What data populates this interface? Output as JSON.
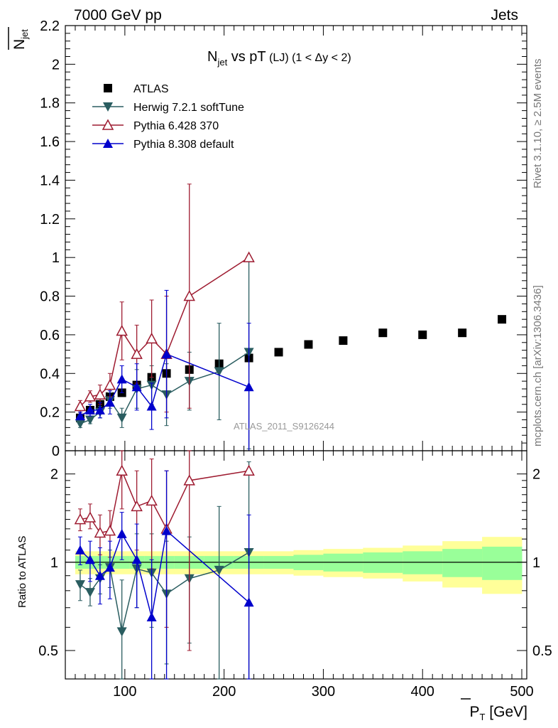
{
  "header": {
    "left": "7000 GeV pp",
    "right": "Jets"
  },
  "side_labels": {
    "rivet": "Rivet 3.1.10, ≥ 2.5M events",
    "mcplots": "mcplots.cern.ch [arXiv:1306.3436]"
  },
  "watermark": "ATLAS_2011_S9126244",
  "chart_data": [
    {
      "type": "scatter",
      "panel": "main",
      "title_parts": {
        "main": "N",
        "sub": "jet",
        "rest": " vs pT",
        "lj": " (LJ)",
        "range": " (1 < Δy < 2)"
      },
      "ylabel_parts": {
        "main": "N",
        "sub": "jet"
      },
      "ylim": [
        0,
        2.2
      ],
      "xlim": [
        40,
        505
      ],
      "y_ticks": [
        0,
        0.2,
        0.4,
        0.6,
        0.8,
        1,
        1.2,
        1.4,
        1.6,
        1.8,
        2,
        2.2
      ],
      "y_tick_labels": [
        "0",
        "0.2",
        "0.4",
        "0.6",
        "0.8",
        "1",
        "1.2",
        "1.4",
        "1.6",
        "1.8",
        "2",
        "2.2"
      ],
      "legend_position": "top-left",
      "series": [
        {
          "name": "ATLAS",
          "color": "#000000",
          "marker": "square",
          "x": [
            55,
            65,
            75,
            85,
            97,
            112,
            127,
            142,
            165,
            195,
            225,
            255,
            285,
            320,
            360,
            400,
            440,
            480
          ],
          "y": [
            0.17,
            0.21,
            0.24,
            0.28,
            0.3,
            0.34,
            0.38,
            0.4,
            0.42,
            0.45,
            0.48,
            0.51,
            0.55,
            0.57,
            0.61,
            0.6,
            0.61,
            0.68
          ],
          "err": [
            0.01,
            0.01,
            0.01,
            0.01,
            0.01,
            0.01,
            0.01,
            0.01,
            0.01,
            0.01,
            0.01,
            0.01,
            0.01,
            0.01,
            0.01,
            0.01,
            0.01,
            0.01
          ]
        },
        {
          "name": "Herwig 7.2.1 softTune",
          "color": "#2a5d60",
          "marker": "triangle-down",
          "x": [
            55,
            65,
            75,
            85,
            97,
            112,
            127,
            142,
            165,
            195,
            225
          ],
          "y": [
            0.14,
            0.16,
            0.2,
            0.26,
            0.17,
            0.32,
            0.34,
            0.29,
            0.36,
            0.41,
            0.51
          ],
          "err": [
            0.02,
            0.02,
            0.03,
            0.04,
            0.05,
            0.1,
            0.1,
            0.16,
            0.15,
            0.25,
            0.5
          ]
        },
        {
          "name": "Pythia 6.428 370",
          "color": "#9e1b30",
          "marker": "triangle-up-open",
          "x": [
            55,
            65,
            75,
            85,
            97,
            112,
            127,
            142,
            165,
            225
          ],
          "y": [
            0.23,
            0.28,
            0.29,
            0.34,
            0.62,
            0.5,
            0.58,
            0.5,
            0.8,
            1.0
          ],
          "err": [
            0.03,
            0.03,
            0.05,
            0.06,
            0.15,
            0.15,
            0.2,
            0.3,
            0.58,
            0.01
          ]
        },
        {
          "name": "Pythia 8.308 default",
          "color": "#0000cc",
          "marker": "triangle-up",
          "x": [
            55,
            65,
            75,
            85,
            97,
            112,
            127,
            142,
            225
          ],
          "y": [
            0.18,
            0.21,
            0.21,
            0.25,
            0.37,
            0.33,
            0.23,
            0.5,
            0.33
          ],
          "err": [
            0.02,
            0.03,
            0.04,
            0.06,
            0.07,
            0.12,
            0.12,
            0.33,
            0.33
          ]
        }
      ]
    },
    {
      "type": "scatter",
      "panel": "ratio",
      "ylabel": "Ratio to ATLAS",
      "xlabel_parts": {
        "main": "P",
        "sub": "T",
        "rest": " [GeV]"
      },
      "yscale": "log",
      "ylim": [
        0.4,
        2.4
      ],
      "xlim": [
        40,
        505
      ],
      "x_ticks": [
        100,
        200,
        300,
        400,
        500
      ],
      "x_tick_labels": [
        "100",
        "200",
        "300",
        "400",
        "500"
      ],
      "y_ticks": [
        0.5,
        1,
        2
      ],
      "y_tick_labels": [
        "0.5",
        "1",
        "2"
      ],
      "bands": {
        "inner_color": "#99ff99",
        "outer_color": "#ffff99",
        "x_edges": [
          50,
          60,
          70,
          80,
          90,
          105,
          120,
          135,
          150,
          180,
          210,
          240,
          270,
          300,
          340,
          380,
          420,
          460,
          500
        ],
        "inner": [
          0.05,
          0.05,
          0.05,
          0.05,
          0.05,
          0.05,
          0.05,
          0.05,
          0.05,
          0.05,
          0.05,
          0.05,
          0.06,
          0.07,
          0.08,
          0.09,
          0.11,
          0.13
        ],
        "outer": [
          0.09,
          0.09,
          0.09,
          0.09,
          0.09,
          0.09,
          0.09,
          0.09,
          0.09,
          0.09,
          0.09,
          0.09,
          0.1,
          0.11,
          0.12,
          0.14,
          0.18,
          0.22
        ]
      },
      "series": [
        {
          "name": "Herwig 7.2.1 softTune",
          "color": "#2a5d60",
          "marker": "triangle-down",
          "x": [
            55,
            65,
            75,
            85,
            97,
            112,
            127,
            142,
            165,
            195,
            225
          ],
          "y": [
            0.84,
            0.79,
            0.88,
            0.96,
            0.58,
            0.95,
            0.92,
            0.78,
            0.88,
            0.94,
            1.08
          ],
          "lo": [
            0.74,
            0.71,
            0.78,
            0.82,
            0.38,
            0.7,
            0.6,
            0.45,
            0.53,
            0.38,
            0.35
          ],
          "hi": [
            0.94,
            0.88,
            0.98,
            1.1,
            0.87,
            1.25,
            1.25,
            1.18,
            1.22,
            1.55,
            2.2
          ]
        },
        {
          "name": "Pythia 6.428 370",
          "color": "#9e1b30",
          "marker": "triangle-up-open",
          "x": [
            55,
            65,
            75,
            85,
            97,
            112,
            127,
            142,
            165,
            225
          ],
          "y": [
            1.4,
            1.42,
            1.26,
            1.28,
            2.05,
            1.55,
            1.62,
            1.3,
            1.9,
            2.05
          ],
          "lo": [
            1.28,
            1.3,
            1.06,
            1.04,
            1.52,
            1.1,
            0.95,
            0.6,
            0.5,
            2.03
          ],
          "hi": [
            1.52,
            1.58,
            1.45,
            1.5,
            2.4,
            2.05,
            2.25,
            2.05,
            2.4,
            2.07
          ]
        },
        {
          "name": "Pythia 8.308 default",
          "color": "#0000cc",
          "marker": "triangle-up",
          "x": [
            55,
            65,
            75,
            85,
            97,
            112,
            127,
            142,
            225
          ],
          "y": [
            1.1,
            1.02,
            0.9,
            0.96,
            1.25,
            1.02,
            0.65,
            1.28,
            0.73
          ],
          "lo": [
            0.98,
            0.86,
            0.72,
            0.75,
            1.02,
            0.7,
            0.38,
            0.4,
            0.38
          ],
          "hi": [
            1.22,
            1.18,
            1.12,
            1.18,
            1.48,
            1.35,
            1.02,
            2.05,
            1.45
          ]
        }
      ]
    }
  ]
}
